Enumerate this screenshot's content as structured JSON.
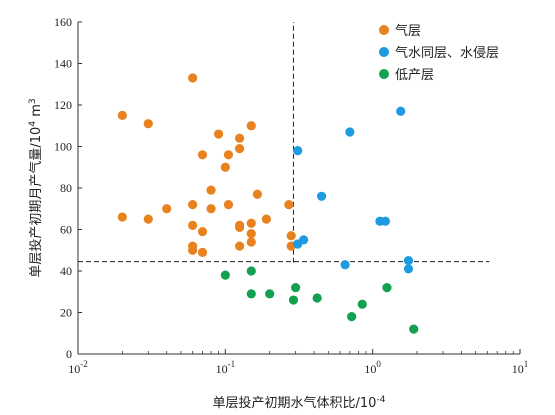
{
  "chart_data": {
    "type": "scatter",
    "title": "",
    "xlabel": "单层投产初期水气体积比/10",
    "xlabel_sup": "-4",
    "ylabel": "单层投产初期月产气量/10",
    "ylabel_sup": "4",
    "ylabel_unit": " m",
    "ylabel_unit_sup": "3",
    "x_scale": "log",
    "xlim": [
      0.01,
      10
    ],
    "ylim": [
      0,
      160
    ],
    "x_ticks": [
      {
        "base": "10",
        "exp": "-2",
        "value": 0.01
      },
      {
        "base": "10",
        "exp": "-1",
        "value": 0.1
      },
      {
        "base": "10",
        "exp": "0",
        "value": 1
      },
      {
        "base": "10",
        "exp": "1",
        "value": 10
      }
    ],
    "y_ticks": [
      "0",
      "20",
      "40",
      "60",
      "80",
      "100",
      "120",
      "140",
      "160"
    ],
    "grid": false,
    "legend_position": "top-right",
    "reference_lines": [
      {
        "orientation": "vertical",
        "x": 0.29,
        "y_from": 44,
        "y_to": 160,
        "style": "dashed"
      },
      {
        "orientation": "horizontal",
        "y": 44.5,
        "x_from": 0.01,
        "x_to": 6.2,
        "style": "dashed"
      }
    ],
    "series": [
      {
        "name": "气层",
        "color": "#E8821E",
        "points": [
          [
            0.02,
            115
          ],
          [
            0.02,
            66
          ],
          [
            0.03,
            111
          ],
          [
            0.03,
            65
          ],
          [
            0.04,
            70
          ],
          [
            0.06,
            133
          ],
          [
            0.06,
            72
          ],
          [
            0.06,
            62
          ],
          [
            0.06,
            52
          ],
          [
            0.06,
            50
          ],
          [
            0.07,
            96
          ],
          [
            0.07,
            59
          ],
          [
            0.07,
            49
          ],
          [
            0.08,
            79
          ],
          [
            0.08,
            70
          ],
          [
            0.09,
            106
          ],
          [
            0.1,
            90
          ],
          [
            0.105,
            96
          ],
          [
            0.105,
            72
          ],
          [
            0.125,
            104
          ],
          [
            0.125,
            99
          ],
          [
            0.125,
            62
          ],
          [
            0.125,
            61
          ],
          [
            0.125,
            52
          ],
          [
            0.15,
            110
          ],
          [
            0.15,
            63
          ],
          [
            0.15,
            58
          ],
          [
            0.15,
            54
          ],
          [
            0.165,
            77
          ],
          [
            0.19,
            65
          ],
          [
            0.27,
            72
          ],
          [
            0.28,
            57
          ],
          [
            0.28,
            52
          ]
        ]
      },
      {
        "name": "气水同层、水侵层",
        "color": "#1E9BE0",
        "points": [
          [
            0.31,
            98
          ],
          [
            0.31,
            53
          ],
          [
            0.34,
            55
          ],
          [
            0.45,
            76
          ],
          [
            0.65,
            43
          ],
          [
            0.7,
            107
          ],
          [
            1.12,
            64
          ],
          [
            1.22,
            64
          ],
          [
            1.55,
            117
          ],
          [
            1.75,
            45
          ],
          [
            1.75,
            41
          ]
        ]
      },
      {
        "name": "低产层",
        "color": "#13A050",
        "points": [
          [
            0.1,
            38
          ],
          [
            0.15,
            40
          ],
          [
            0.15,
            29
          ],
          [
            0.2,
            29
          ],
          [
            0.29,
            26
          ],
          [
            0.3,
            32
          ],
          [
            0.42,
            27
          ],
          [
            0.72,
            18
          ],
          [
            0.85,
            24
          ],
          [
            1.25,
            32
          ],
          [
            1.9,
            12
          ]
        ]
      }
    ]
  }
}
